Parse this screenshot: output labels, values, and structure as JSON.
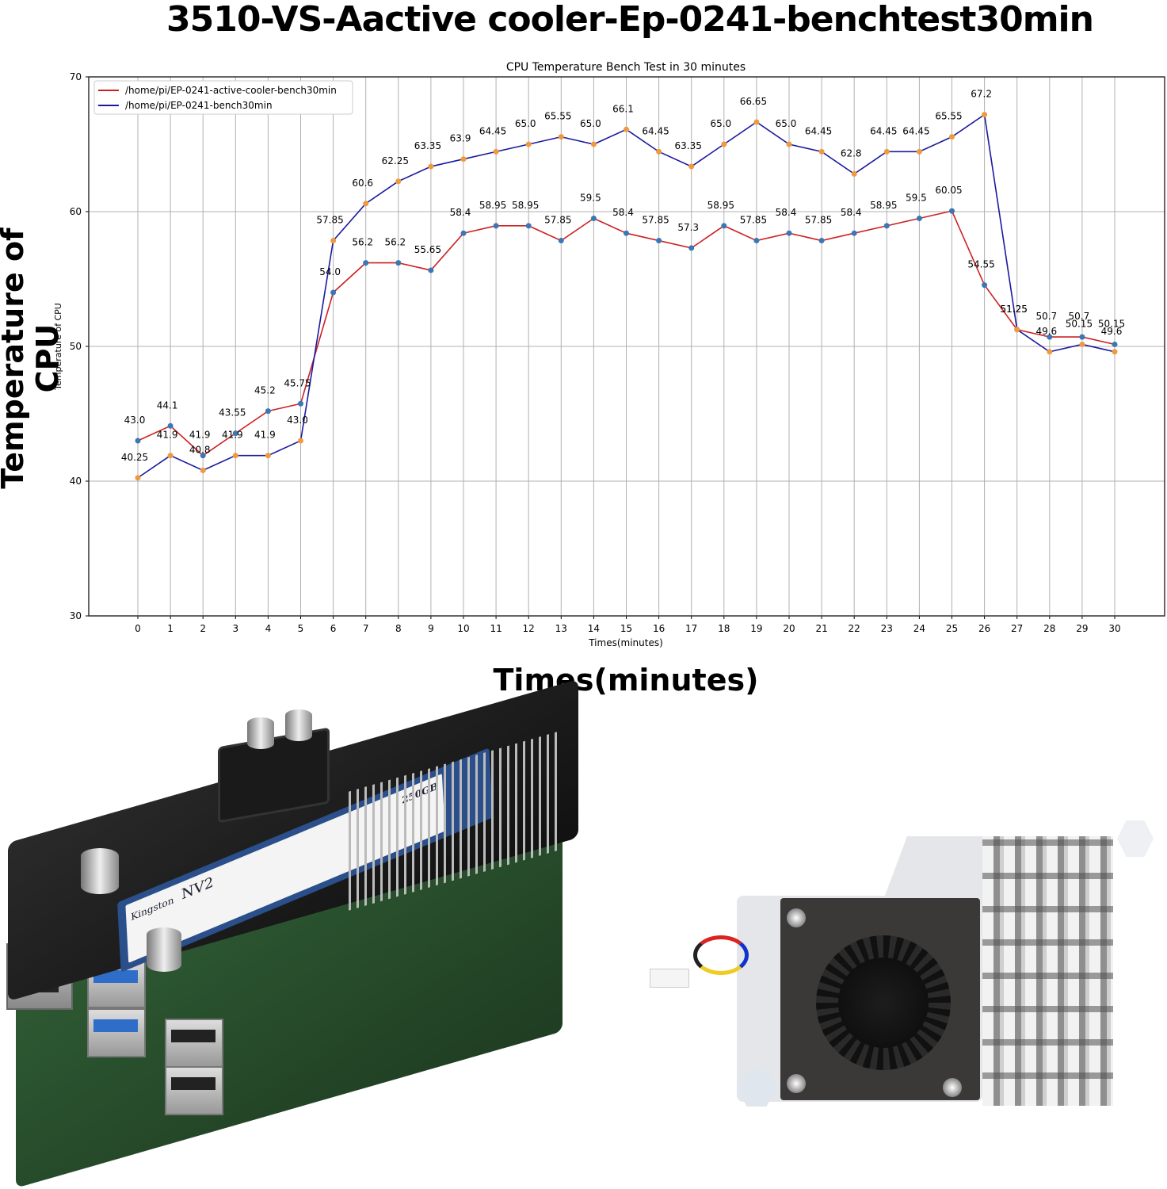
{
  "header": {
    "title": "3510-VS-Aactive cooler-Ep-0241-benchtest30min",
    "big_ylabel": "Temperature of CPU",
    "big_xlabel": "Times(minutes)"
  },
  "colors": {
    "series_active_cooler": "#cc2222",
    "series_bench": "#1a1aa0",
    "marker_active_cooler": "#3a78b5",
    "marker_bench": "#f09a3e",
    "grid": "#b0b0b0",
    "axis": "#000000"
  },
  "chart_data": {
    "type": "line",
    "title": "CPU Temperature Bench Test in 30 minutes",
    "xlabel": "Times(minutes)",
    "ylabel": "Temperature of CPU",
    "ylim": [
      30,
      70
    ],
    "yticks": [
      30,
      40,
      50,
      60,
      70
    ],
    "x": [
      0,
      1,
      2,
      3,
      4,
      5,
      6,
      7,
      8,
      9,
      10,
      11,
      12,
      13,
      14,
      15,
      16,
      17,
      18,
      19,
      20,
      21,
      22,
      23,
      24,
      25,
      26,
      27,
      28,
      29,
      30
    ],
    "grid": true,
    "legend_position": "upper left",
    "series": [
      {
        "name": "/home/pi/EP-0241-active-cooler-bench30min",
        "color": "#cc2222",
        "values": [
          43.0,
          44.1,
          41.9,
          43.55,
          45.2,
          45.75,
          54.0,
          56.2,
          56.2,
          55.65,
          58.4,
          58.95,
          58.95,
          57.85,
          59.5,
          58.4,
          57.85,
          57.3,
          58.95,
          57.85,
          58.4,
          57.85,
          58.4,
          58.95,
          59.5,
          60.05,
          54.55,
          51.25,
          50.7,
          50.7,
          50.15
        ]
      },
      {
        "name": "/home/pi/EP-0241-bench30min",
        "color": "#1a1aa0",
        "values": [
          40.25,
          41.9,
          40.8,
          41.9,
          41.9,
          43.0,
          57.85,
          60.6,
          62.25,
          63.35,
          63.9,
          64.45,
          65.0,
          65.55,
          65.0,
          66.1,
          64.45,
          63.35,
          65.0,
          66.65,
          65.0,
          64.45,
          62.8,
          64.45,
          64.45,
          65.55,
          67.2,
          51.25,
          49.6,
          50.15,
          49.6
        ]
      }
    ]
  },
  "photos": {
    "left": "Raspberry Pi with M.2 NVMe HAT and Kingston NV2 250GB SSD",
    "ssd_brand": "Kingston",
    "ssd_model": "NV2",
    "ssd_capacity": "250GB",
    "right": "Raspberry Pi active cooler with blower fan and aluminum heatsink"
  }
}
